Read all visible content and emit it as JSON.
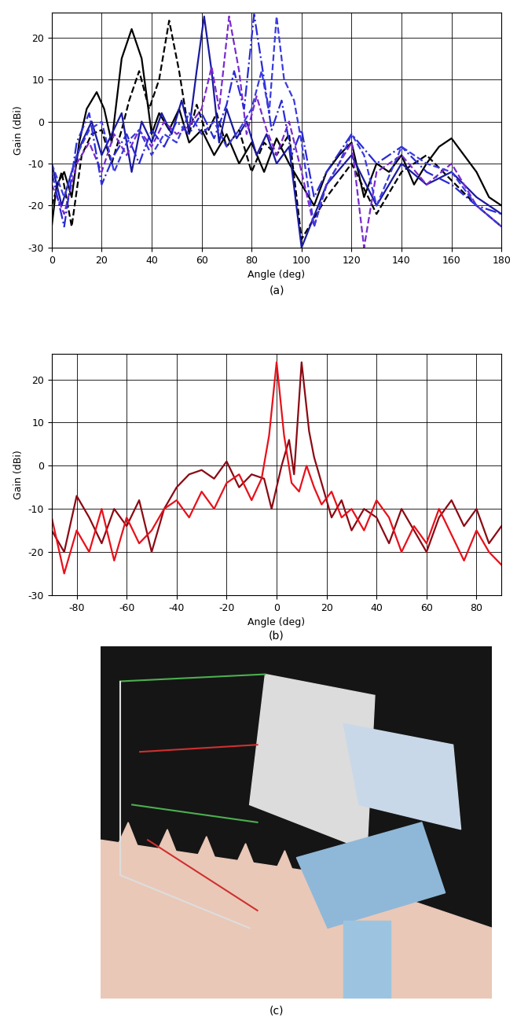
{
  "chart_data": [
    {
      "type": "line",
      "caption": "(a)",
      "x_label": "Angle (deg)",
      "y_label": "Gain (dBi)",
      "xlim": [
        0,
        180
      ],
      "xticks": [
        0,
        20,
        40,
        60,
        80,
        100,
        120,
        140,
        160,
        180
      ],
      "ylim": [
        -30,
        26
      ],
      "yticks": [
        -30,
        -20,
        -10,
        0,
        10,
        20
      ],
      "grid": true,
      "series": [
        {
          "color": "#000000",
          "line_style": "solid",
          "x": [
            0,
            2,
            5,
            8,
            11,
            14,
            18,
            21,
            24,
            28,
            32,
            36,
            40,
            43,
            47,
            51,
            55,
            60,
            65,
            70,
            75,
            80,
            85,
            90,
            95,
            100,
            105,
            110,
            115,
            120,
            125,
            130,
            135,
            140,
            145,
            150,
            155,
            160,
            165,
            170,
            175,
            180
          ],
          "values": [
            -25,
            -15,
            -12,
            -18,
            -5,
            3,
            7,
            3,
            -5,
            15,
            22,
            15,
            -3,
            2,
            -2,
            3,
            -5,
            -2,
            -8,
            -3,
            -10,
            -5,
            -12,
            -4,
            -10,
            -15,
            -20,
            -12,
            -8,
            -5,
            -18,
            -10,
            -12,
            -8,
            -15,
            -10,
            -6,
            -4,
            -8,
            -12,
            -18,
            -20
          ]
        },
        {
          "color": "#000000",
          "line_style": "dashed",
          "x": [
            0,
            4,
            8,
            12,
            16,
            20,
            24,
            28,
            31,
            35,
            39,
            43,
            47,
            51,
            55,
            58,
            62,
            66,
            70,
            75,
            80,
            85,
            90,
            95,
            100,
            110,
            120,
            130,
            140,
            150,
            160,
            170,
            180
          ],
          "values": [
            -20,
            -12,
            -25,
            -8,
            -3,
            -2,
            -10,
            -2,
            5,
            12,
            3,
            10,
            24,
            12,
            -3,
            4,
            -3,
            2,
            -6,
            -2,
            -12,
            -5,
            -8,
            -3,
            -28,
            -18,
            -10,
            -22,
            -12,
            -8,
            -14,
            -20,
            -25
          ]
        },
        {
          "color": "#1a1aa0",
          "line_style": "solid",
          "x": [
            0,
            4,
            8,
            12,
            16,
            20,
            24,
            28,
            32,
            36,
            40,
            44,
            48,
            52,
            55,
            58,
            61,
            64,
            67,
            70,
            74,
            78,
            82,
            86,
            90,
            95,
            100,
            110,
            120,
            130,
            140,
            150,
            160,
            170,
            180
          ],
          "values": [
            -10,
            -20,
            -12,
            -5,
            0,
            -8,
            -3,
            2,
            -12,
            0,
            -5,
            2,
            -3,
            5,
            -2,
            12,
            25,
            12,
            -5,
            3,
            -4,
            0,
            -8,
            -3,
            -10,
            -6,
            -30,
            -15,
            -8,
            -20,
            -10,
            -15,
            -12,
            -18,
            -22
          ]
        },
        {
          "color": "#7a2ad0",
          "line_style": "dashed",
          "x": [
            0,
            5,
            10,
            15,
            20,
            25,
            30,
            35,
            40,
            45,
            50,
            55,
            60,
            64,
            67,
            71,
            75,
            78,
            82,
            86,
            90,
            95,
            100,
            105,
            110,
            120,
            125,
            130,
            140,
            150,
            160,
            170,
            180
          ],
          "values": [
            -15,
            -22,
            -10,
            -5,
            -12,
            -3,
            -8,
            -2,
            -6,
            0,
            -3,
            -1,
            3,
            13,
            3,
            25,
            12,
            -3,
            6,
            -2,
            -8,
            0,
            -12,
            -25,
            -15,
            -5,
            -30,
            -12,
            -8,
            -15,
            -10,
            -20,
            -25
          ]
        },
        {
          "color": "#2a2ad8",
          "line_style": "dashdot",
          "x": [
            0,
            5,
            10,
            15,
            20,
            25,
            30,
            35,
            40,
            45,
            50,
            55,
            60,
            65,
            70,
            73,
            77,
            81,
            85,
            88,
            92,
            96,
            100,
            105,
            110,
            120,
            130,
            140,
            150,
            160,
            170,
            180
          ],
          "values": [
            -12,
            -25,
            -5,
            2,
            -15,
            -8,
            -3,
            -10,
            -2,
            -6,
            0,
            -3,
            2,
            -4,
            4,
            12,
            3,
            25.5,
            10,
            -2,
            5,
            -8,
            -2,
            -18,
            -12,
            -3,
            -10,
            -6,
            -12,
            -15,
            -20,
            -22
          ]
        },
        {
          "color": "#3a3ae0",
          "line_style": "dashed",
          "x": [
            0,
            5,
            10,
            15,
            20,
            25,
            30,
            35,
            40,
            45,
            50,
            55,
            60,
            65,
            70,
            75,
            80,
            84,
            87,
            90,
            93,
            97,
            100,
            105,
            110,
            115,
            120,
            125,
            130,
            140,
            150,
            160,
            170,
            180
          ],
          "values": [
            -10,
            -18,
            -8,
            -2,
            0,
            -12,
            -5,
            -2,
            -8,
            -3,
            -5,
            2,
            -3,
            0,
            -6,
            -2,
            3,
            12,
            2,
            25,
            10,
            5,
            -5,
            -25,
            -15,
            -10,
            -3,
            -8,
            -20,
            -6,
            -10,
            -12,
            -20,
            -25
          ]
        }
      ]
    },
    {
      "type": "line",
      "caption": "(b)",
      "x_label": "Angle (deg)",
      "y_label": "Gain (dBi)",
      "xlim": [
        -90,
        90
      ],
      "xticks": [
        -80,
        -60,
        -40,
        -20,
        0,
        20,
        40,
        60,
        80
      ],
      "ylim": [
        -30,
        26
      ],
      "yticks": [
        -30,
        -20,
        -10,
        0,
        10,
        20
      ],
      "grid": true,
      "series": [
        {
          "color": "#8b0a14",
          "line_style": "solid",
          "x": [
            -90,
            -85,
            -80,
            -75,
            -70,
            -65,
            -60,
            -55,
            -50,
            -45,
            -40,
            -35,
            -30,
            -25,
            -20,
            -15,
            -10,
            -5,
            -2,
            2,
            5,
            7,
            10,
            13,
            15,
            18,
            22,
            26,
            30,
            35,
            40,
            45,
            50,
            55,
            60,
            65,
            70,
            75,
            80,
            85,
            90
          ],
          "values": [
            -15,
            -20,
            -7,
            -12,
            -18,
            -10,
            -14,
            -8,
            -20,
            -10,
            -5,
            -2,
            -1,
            -3,
            1,
            -5,
            -2,
            -3,
            -10,
            0,
            6,
            -2,
            24,
            8,
            2,
            -4,
            -12,
            -8,
            -15,
            -10,
            -12,
            -18,
            -10,
            -15,
            -20,
            -12,
            -8,
            -14,
            -10,
            -18,
            -14
          ]
        },
        {
          "color": "#e8101a",
          "line_style": "solid",
          "x": [
            -90,
            -85,
            -80,
            -75,
            -70,
            -65,
            -60,
            -55,
            -50,
            -45,
            -40,
            -35,
            -30,
            -25,
            -20,
            -15,
            -10,
            -6,
            -3,
            0,
            3,
            6,
            9,
            12,
            15,
            18,
            22,
            26,
            30,
            35,
            40,
            45,
            50,
            55,
            60,
            65,
            70,
            75,
            80,
            85,
            90
          ],
          "values": [
            -12,
            -25,
            -15,
            -20,
            -10,
            -22,
            -12,
            -18,
            -15,
            -10,
            -8,
            -12,
            -6,
            -10,
            -4,
            -2,
            -8,
            -3,
            7,
            24,
            7,
            -4,
            -6,
            0,
            -5,
            -9,
            -6,
            -12,
            -10,
            -15,
            -8,
            -12,
            -20,
            -14,
            -18,
            -10,
            -16,
            -22,
            -15,
            -20,
            -23
          ]
        }
      ]
    }
  ],
  "photo": {
    "caption": "(c)"
  }
}
